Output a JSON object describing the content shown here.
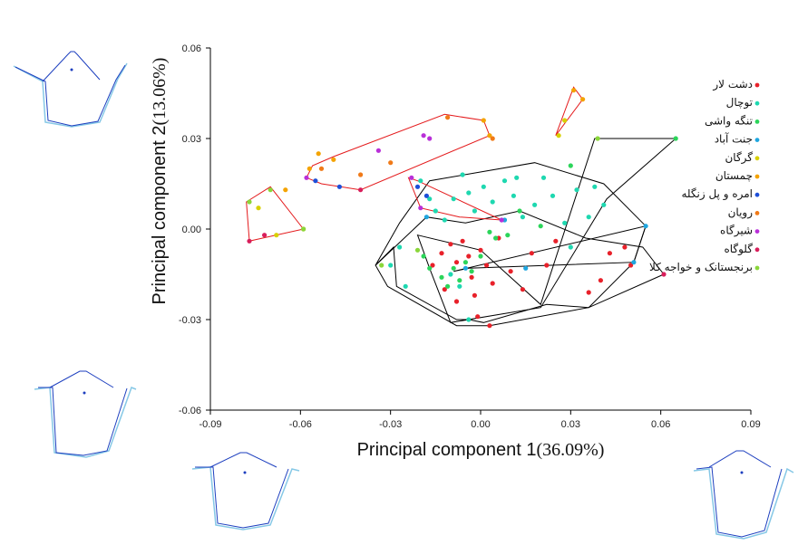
{
  "chart_data": {
    "type": "scatter",
    "xlabel": "Principal component 1",
    "xlabel_pct": "(36.09%)",
    "ylabel": "Principal component 2",
    "ylabel_pct": "(13.06%)",
    "xlim": [
      -0.09,
      0.09
    ],
    "ylim": [
      -0.06,
      0.06
    ],
    "xticks": [
      "-0.09",
      "-0.06",
      "-0.03",
      "0.00",
      "0.03",
      "0.06",
      "0.09"
    ],
    "yticks": [
      "-0.06",
      "-0.03",
      "0.00",
      "0.03",
      "0.06"
    ],
    "grid": false,
    "legend_position": "right",
    "series": [
      {
        "name": "دشت لار",
        "color": "#e8212a",
        "hull_color": "#000000",
        "points": [
          [
            -0.016,
            -0.012
          ],
          [
            -0.013,
            -0.008
          ],
          [
            -0.01,
            -0.005
          ],
          [
            -0.008,
            -0.011
          ],
          [
            -0.006,
            -0.004
          ],
          [
            -0.004,
            -0.009
          ],
          [
            -0.003,
            -0.016
          ],
          [
            -0.002,
            -0.022
          ],
          [
            0.0,
            -0.007
          ],
          [
            0.002,
            -0.012
          ],
          [
            0.004,
            -0.018
          ],
          [
            0.006,
            -0.003
          ],
          [
            0.01,
            -0.014
          ],
          [
            0.014,
            -0.02
          ],
          [
            0.017,
            -0.008
          ],
          [
            0.022,
            -0.012
          ],
          [
            0.025,
            -0.004
          ],
          [
            -0.012,
            -0.02
          ],
          [
            -0.008,
            -0.024
          ],
          [
            0.043,
            -0.008
          ],
          [
            0.048,
            -0.006
          ],
          [
            0.05,
            -0.012
          ],
          [
            0.04,
            -0.017
          ],
          [
            0.036,
            -0.021
          ],
          [
            -0.001,
            -0.029
          ],
          [
            0.003,
            -0.032
          ]
        ]
      },
      {
        "name": "توچال",
        "color": "#1ed8b0",
        "hull_color": "#000000",
        "points": [
          [
            -0.02,
            0.016
          ],
          [
            -0.017,
            0.01
          ],
          [
            -0.015,
            0.006
          ],
          [
            -0.012,
            0.003
          ],
          [
            -0.009,
            0.01
          ],
          [
            -0.006,
            0.018
          ],
          [
            -0.004,
            0.012
          ],
          [
            -0.002,
            0.006
          ],
          [
            0.001,
            0.014
          ],
          [
            0.004,
            0.009
          ],
          [
            0.008,
            0.016
          ],
          [
            0.011,
            0.011
          ],
          [
            0.014,
            0.004
          ],
          [
            0.018,
            0.008
          ],
          [
            0.021,
            0.017
          ],
          [
            0.024,
            0.011
          ],
          [
            0.028,
            0.002
          ],
          [
            0.03,
            -0.006
          ],
          [
            0.032,
            0.013
          ],
          [
            0.036,
            0.004
          ],
          [
            0.038,
            0.014
          ],
          [
            0.041,
            0.008
          ],
          [
            -0.027,
            -0.006
          ],
          [
            -0.03,
            -0.012
          ],
          [
            -0.025,
            -0.019
          ],
          [
            -0.01,
            -0.015
          ],
          [
            -0.007,
            -0.019
          ],
          [
            -0.004,
            -0.03
          ],
          [
            0.007,
            0.003
          ],
          [
            0.012,
            0.017
          ]
        ]
      },
      {
        "name": "تنگه واشی",
        "color": "#2cd55a",
        "hull_color": "#000000",
        "points": [
          [
            -0.013,
            -0.016
          ],
          [
            -0.011,
            -0.019
          ],
          [
            -0.009,
            -0.013
          ],
          [
            -0.007,
            -0.017
          ],
          [
            -0.005,
            -0.011
          ],
          [
            -0.003,
            -0.014
          ],
          [
            0.0,
            -0.009
          ],
          [
            0.003,
            -0.001
          ],
          [
            0.005,
            -0.003
          ],
          [
            0.009,
            -0.002
          ],
          [
            0.013,
            0.006
          ],
          [
            0.02,
            0.001
          ],
          [
            0.03,
            0.021
          ],
          [
            0.065,
            0.03
          ],
          [
            -0.017,
            -0.013
          ],
          [
            -0.019,
            -0.009
          ]
        ]
      },
      {
        "name": "جنت آباد",
        "color": "#1fa6df",
        "hull_color": "#000000",
        "points": [
          [
            0.055,
            0.001
          ],
          [
            0.051,
            -0.011
          ],
          [
            0.008,
            0.003
          ],
          [
            0.015,
            -0.013
          ],
          [
            -0.005,
            -0.013
          ],
          [
            -0.018,
            0.004
          ]
        ]
      },
      {
        "name": "گرگان",
        "color": "#d8d000",
        "hull_color": "#e41a1c",
        "points": [
          [
            -0.068,
            -0.002
          ],
          [
            -0.059,
            0.0
          ],
          [
            -0.074,
            0.007
          ],
          [
            0.026,
            0.031
          ],
          [
            0.028,
            0.036
          ]
        ]
      },
      {
        "name": "چمستان",
        "color": "#f4a300",
        "hull_color": "#e41a1c",
        "points": [
          [
            -0.057,
            0.02
          ],
          [
            -0.054,
            0.025
          ],
          [
            -0.049,
            0.023
          ],
          [
            0.001,
            0.036
          ],
          [
            0.003,
            0.031
          ],
          [
            0.031,
            0.046
          ],
          [
            0.034,
            0.043
          ],
          [
            -0.065,
            0.013
          ]
        ]
      },
      {
        "name": "امره و پل زنگله",
        "color": "#1e4fd8",
        "hull_color": "#e41a1c",
        "points": [
          [
            -0.055,
            0.016
          ],
          [
            -0.047,
            0.014
          ],
          [
            -0.021,
            0.014
          ],
          [
            -0.018,
            0.011
          ]
        ]
      },
      {
        "name": "رویان",
        "color": "#f07a18",
        "hull_color": "#e41a1c",
        "points": [
          [
            -0.053,
            0.02
          ],
          [
            -0.04,
            0.018
          ],
          [
            -0.011,
            0.037
          ],
          [
            0.004,
            0.03
          ],
          [
            -0.03,
            0.022
          ]
        ]
      },
      {
        "name": "شیرگاه",
        "color": "#b92fd8",
        "hull_color": "#e41a1c",
        "points": [
          [
            -0.034,
            0.026
          ],
          [
            -0.019,
            0.031
          ],
          [
            -0.017,
            0.03
          ],
          [
            -0.023,
            0.017
          ],
          [
            -0.02,
            0.007
          ],
          [
            0.007,
            0.003
          ],
          [
            -0.058,
            0.017
          ]
        ]
      },
      {
        "name": "گلوگاه",
        "color": "#d81e5b",
        "hull_color": "#e41a1c",
        "points": [
          [
            -0.077,
            -0.004
          ],
          [
            -0.072,
            -0.002
          ],
          [
            -0.04,
            0.013
          ],
          [
            0.061,
            -0.015
          ]
        ]
      },
      {
        "name": "برنجستانک و خواجه کلا",
        "color": "#8ad63a",
        "hull_color": "#000000",
        "points": [
          [
            -0.077,
            0.009
          ],
          [
            -0.059,
            0.0
          ],
          [
            -0.07,
            0.013
          ],
          [
            -0.033,
            -0.012
          ],
          [
            -0.021,
            -0.007
          ],
          [
            0.039,
            0.03
          ]
        ]
      }
    ],
    "hulls": [
      {
        "color": "#000000",
        "points": [
          [
            -0.035,
            -0.012
          ],
          [
            -0.029,
            -0.006
          ],
          [
            -0.028,
            -0.019
          ],
          [
            -0.008,
            -0.03
          ],
          [
            -0.004,
            -0.03
          ],
          [
            0.001,
            -0.031
          ],
          [
            0.022,
            -0.025
          ],
          [
            0.036,
            -0.026
          ],
          [
            0.051,
            -0.011
          ],
          [
            0.055,
            0.001
          ],
          [
            0.041,
            0.015
          ],
          [
            0.018,
            0.022
          ],
          [
            -0.017,
            0.016
          ],
          [
            -0.027,
            0.002
          ]
        ]
      },
      {
        "color": "#000000",
        "points": [
          [
            -0.031,
            -0.019
          ],
          [
            -0.008,
            -0.032
          ],
          [
            0.003,
            -0.032
          ],
          [
            0.036,
            -0.026
          ],
          [
            0.061,
            -0.015
          ],
          [
            0.054,
            -0.006
          ],
          [
            0.035,
            -0.003
          ],
          [
            0.013,
            0.006
          ],
          [
            -0.005,
            0.002
          ],
          [
            -0.018,
            0.004
          ],
          [
            -0.035,
            -0.012
          ]
        ]
      },
      {
        "color": "#000000",
        "points": [
          [
            -0.009,
            -0.014
          ],
          [
            0.055,
            0.001
          ],
          [
            0.051,
            -0.011
          ],
          [
            -0.004,
            -0.013
          ]
        ]
      },
      {
        "color": "#000000",
        "points": [
          [
            -0.021,
            -0.002
          ],
          [
            0.0,
            -0.007
          ],
          [
            0.02,
            -0.025
          ],
          [
            0.038,
            0.03
          ],
          [
            0.065,
            0.03
          ],
          [
            0.042,
            0.01
          ],
          [
            0.02,
            -0.026
          ],
          [
            -0.01,
            -0.031
          ],
          [
            -0.017,
            -0.013
          ]
        ]
      },
      {
        "color": "#e41a1c",
        "points": [
          [
            -0.078,
            0.009
          ],
          [
            -0.07,
            0.014
          ],
          [
            -0.059,
            0.0
          ],
          [
            -0.077,
            -0.004
          ]
        ]
      },
      {
        "color": "#e41a1c",
        "points": [
          [
            -0.058,
            0.017
          ],
          [
            -0.056,
            0.021
          ],
          [
            -0.049,
            0.024
          ],
          [
            -0.012,
            0.038
          ],
          [
            0.001,
            0.036
          ],
          [
            0.003,
            0.031
          ],
          [
            -0.04,
            0.013
          ],
          [
            -0.053,
            0.015
          ]
        ]
      },
      {
        "color": "#e41a1c",
        "points": [
          [
            -0.024,
            0.017
          ],
          [
            -0.02,
            0.007
          ],
          [
            -0.007,
            0.004
          ],
          [
            0.007,
            0.003
          ],
          [
            -0.021,
            0.016
          ]
        ]
      },
      {
        "color": "#e41a1c",
        "points": [
          [
            0.025,
            0.031
          ],
          [
            0.031,
            0.047
          ],
          [
            0.034,
            0.043
          ]
        ]
      }
    ]
  }
}
